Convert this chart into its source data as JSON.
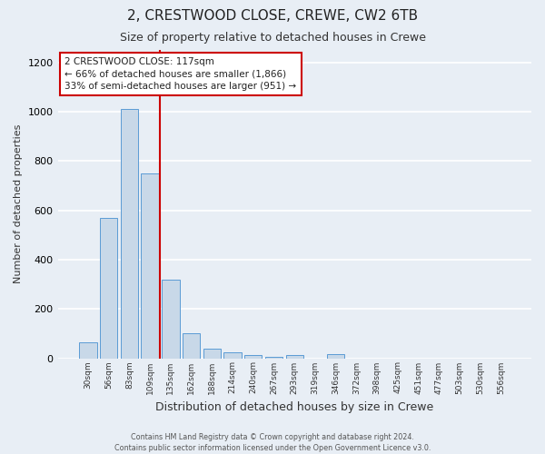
{
  "title": "2, CRESTWOOD CLOSE, CREWE, CW2 6TB",
  "subtitle": "Size of property relative to detached houses in Crewe",
  "xlabel": "Distribution of detached houses by size in Crewe",
  "ylabel": "Number of detached properties",
  "footer_line1": "Contains HM Land Registry data © Crown copyright and database right 2024.",
  "footer_line2": "Contains public sector information licensed under the Open Government Licence v3.0.",
  "categories": [
    "30sqm",
    "56sqm",
    "83sqm",
    "109sqm",
    "135sqm",
    "162sqm",
    "188sqm",
    "214sqm",
    "240sqm",
    "267sqm",
    "293sqm",
    "319sqm",
    "346sqm",
    "372sqm",
    "398sqm",
    "425sqm",
    "451sqm",
    "477sqm",
    "503sqm",
    "530sqm",
    "556sqm"
  ],
  "values": [
    65,
    570,
    1010,
    750,
    320,
    100,
    38,
    25,
    13,
    5,
    13,
    0,
    15,
    0,
    0,
    0,
    0,
    0,
    0,
    0,
    0
  ],
  "bar_color": "#c8d8e8",
  "bar_edge_color": "#5b9bd5",
  "vline_x": 3.5,
  "vline_color": "#cc0000",
  "annotation_line1": "2 CRESTWOOD CLOSE: 117sqm",
  "annotation_line2": "← 66% of detached houses are smaller (1,866)",
  "annotation_line3": "33% of semi-detached houses are larger (951) →",
  "annotation_box_color": "#ffffff",
  "annotation_box_edge_color": "#cc0000",
  "ylim": [
    0,
    1250
  ],
  "yticks": [
    0,
    200,
    400,
    600,
    800,
    1000,
    1200
  ],
  "bg_color": "#e8eef5",
  "axes_bg_color": "#e8eef5",
  "grid_color": "#ffffff",
  "title_fontsize": 11,
  "subtitle_fontsize": 9,
  "annotation_fontsize": 7.5,
  "ylabel_fontsize": 8,
  "xlabel_fontsize": 9
}
